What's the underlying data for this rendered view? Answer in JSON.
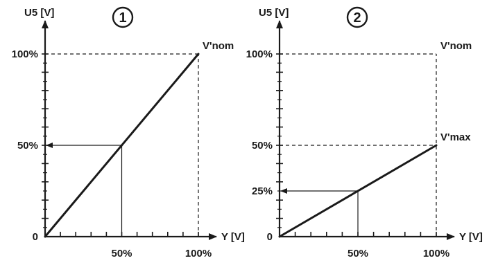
{
  "chart_data": [
    {
      "type": "line",
      "badge": "1",
      "ylabel": "U5 [V]",
      "xlabel": "Y [V]",
      "xlim": [
        0,
        100
      ],
      "ylim": [
        0,
        100
      ],
      "x_tick_labels": [
        {
          "value": 50,
          "label": "50%"
        },
        {
          "value": 100,
          "label": "100%"
        }
      ],
      "y_tick_labels": [
        {
          "value": 0,
          "label": "0"
        },
        {
          "value": 50,
          "label": "50%"
        },
        {
          "value": 100,
          "label": "100%"
        }
      ],
      "series": [
        {
          "x": [
            0,
            100
          ],
          "y": [
            0,
            100
          ]
        }
      ],
      "reference_lines": [
        {
          "style": "dashed",
          "from": [
            0,
            100
          ],
          "to": [
            100,
            100
          ]
        },
        {
          "style": "dashed",
          "from": [
            100,
            0
          ],
          "to": [
            100,
            100
          ]
        },
        {
          "style": "solid",
          "from": [
            50,
            0
          ],
          "to": [
            50,
            50
          ]
        },
        {
          "style": "arrow",
          "from": [
            50,
            50
          ],
          "to": [
            0,
            50
          ]
        }
      ],
      "annotations": [
        {
          "text": "V'nom",
          "x": 100,
          "y": 100
        }
      ]
    },
    {
      "type": "line",
      "badge": "2",
      "ylabel": "U5 [V]",
      "xlabel": "Y [V]",
      "xlim": [
        0,
        100
      ],
      "ylim": [
        0,
        100
      ],
      "x_tick_labels": [
        {
          "value": 50,
          "label": "50%"
        },
        {
          "value": 100,
          "label": "100%"
        }
      ],
      "y_tick_labels": [
        {
          "value": 0,
          "label": "0"
        },
        {
          "value": 25,
          "label": "25%"
        },
        {
          "value": 50,
          "label": "50%"
        },
        {
          "value": 100,
          "label": "100%"
        }
      ],
      "series": [
        {
          "x": [
            0,
            100
          ],
          "y": [
            0,
            50
          ]
        }
      ],
      "reference_lines": [
        {
          "style": "dashed",
          "from": [
            0,
            100
          ],
          "to": [
            100,
            100
          ]
        },
        {
          "style": "dashed",
          "from": [
            0,
            50
          ],
          "to": [
            100,
            50
          ]
        },
        {
          "style": "dashed",
          "from": [
            100,
            0
          ],
          "to": [
            100,
            100
          ]
        },
        {
          "style": "solid",
          "from": [
            50,
            0
          ],
          "to": [
            50,
            25
          ]
        },
        {
          "style": "arrow",
          "from": [
            50,
            25
          ],
          "to": [
            0,
            25
          ]
        }
      ],
      "annotations": [
        {
          "text": "V'nom",
          "x": 100,
          "y": 100
        },
        {
          "text": "V'max",
          "x": 100,
          "y": 50
        }
      ]
    }
  ]
}
